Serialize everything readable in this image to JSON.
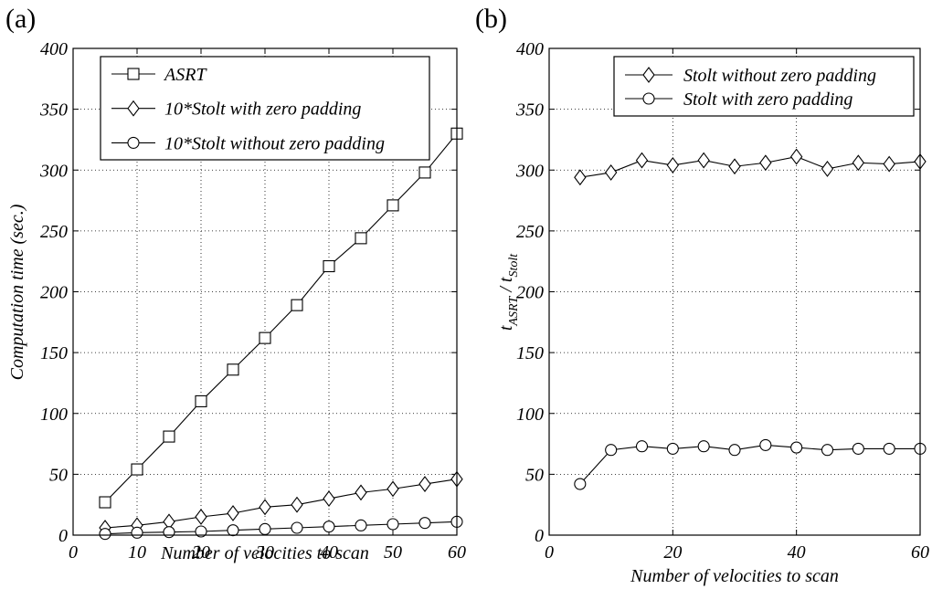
{
  "chart_data": [
    {
      "type": "line",
      "panel_label": "(a)",
      "title": "",
      "xlabel": "Number of velocities to scan",
      "ylabel": "Computation time (sec.)",
      "xlim": [
        0,
        60
      ],
      "ylim": [
        0,
        400
      ],
      "xticks": [
        0,
        10,
        20,
        30,
        40,
        50,
        60
      ],
      "yticks": [
        0,
        50,
        100,
        150,
        200,
        250,
        300,
        350,
        400
      ],
      "grid": true,
      "legend_position": "top-right",
      "x": [
        5,
        10,
        15,
        20,
        25,
        30,
        35,
        40,
        45,
        50,
        55,
        60
      ],
      "series": [
        {
          "name": "ASRT",
          "marker": "square",
          "values": [
            27,
            54,
            81,
            110,
            136,
            162,
            189,
            221,
            244,
            271,
            298,
            330
          ]
        },
        {
          "name": "10*Stolt with zero padding",
          "marker": "diamond",
          "values": [
            6,
            8,
            11,
            15,
            18,
            23,
            25,
            30,
            35,
            38,
            42,
            46
          ]
        },
        {
          "name": "10*Stolt without zero padding",
          "marker": "circle",
          "values": [
            1,
            2,
            2.5,
            3,
            4,
            5,
            6,
            7,
            8,
            9,
            10,
            11
          ]
        }
      ]
    },
    {
      "type": "line",
      "panel_label": "(b)",
      "title": "",
      "xlabel": "Number of velocities to scan",
      "ylabel_main": "t",
      "ylabel_sub1": "ASRT",
      "ylabel_sep": " / t",
      "ylabel_sub2": "Stolt",
      "xlim": [
        0,
        60
      ],
      "ylim": [
        0,
        400
      ],
      "xticks": [
        0,
        20,
        40,
        60
      ],
      "yticks": [
        0,
        50,
        100,
        150,
        200,
        250,
        300,
        350,
        400
      ],
      "grid": true,
      "legend_position": "top-right",
      "x": [
        5,
        10,
        15,
        20,
        25,
        30,
        35,
        40,
        45,
        50,
        55,
        60
      ],
      "series": [
        {
          "name": "Stolt without zero padding",
          "marker": "diamond",
          "values": [
            294,
            298,
            308,
            304,
            308,
            303,
            306,
            311,
            301,
            306,
            305,
            307
          ]
        },
        {
          "name": "Stolt with zero padding",
          "marker": "circle",
          "values": [
            42,
            70,
            73,
            71,
            73,
            70,
            74,
            72,
            70,
            71,
            71,
            71
          ]
        }
      ]
    }
  ]
}
